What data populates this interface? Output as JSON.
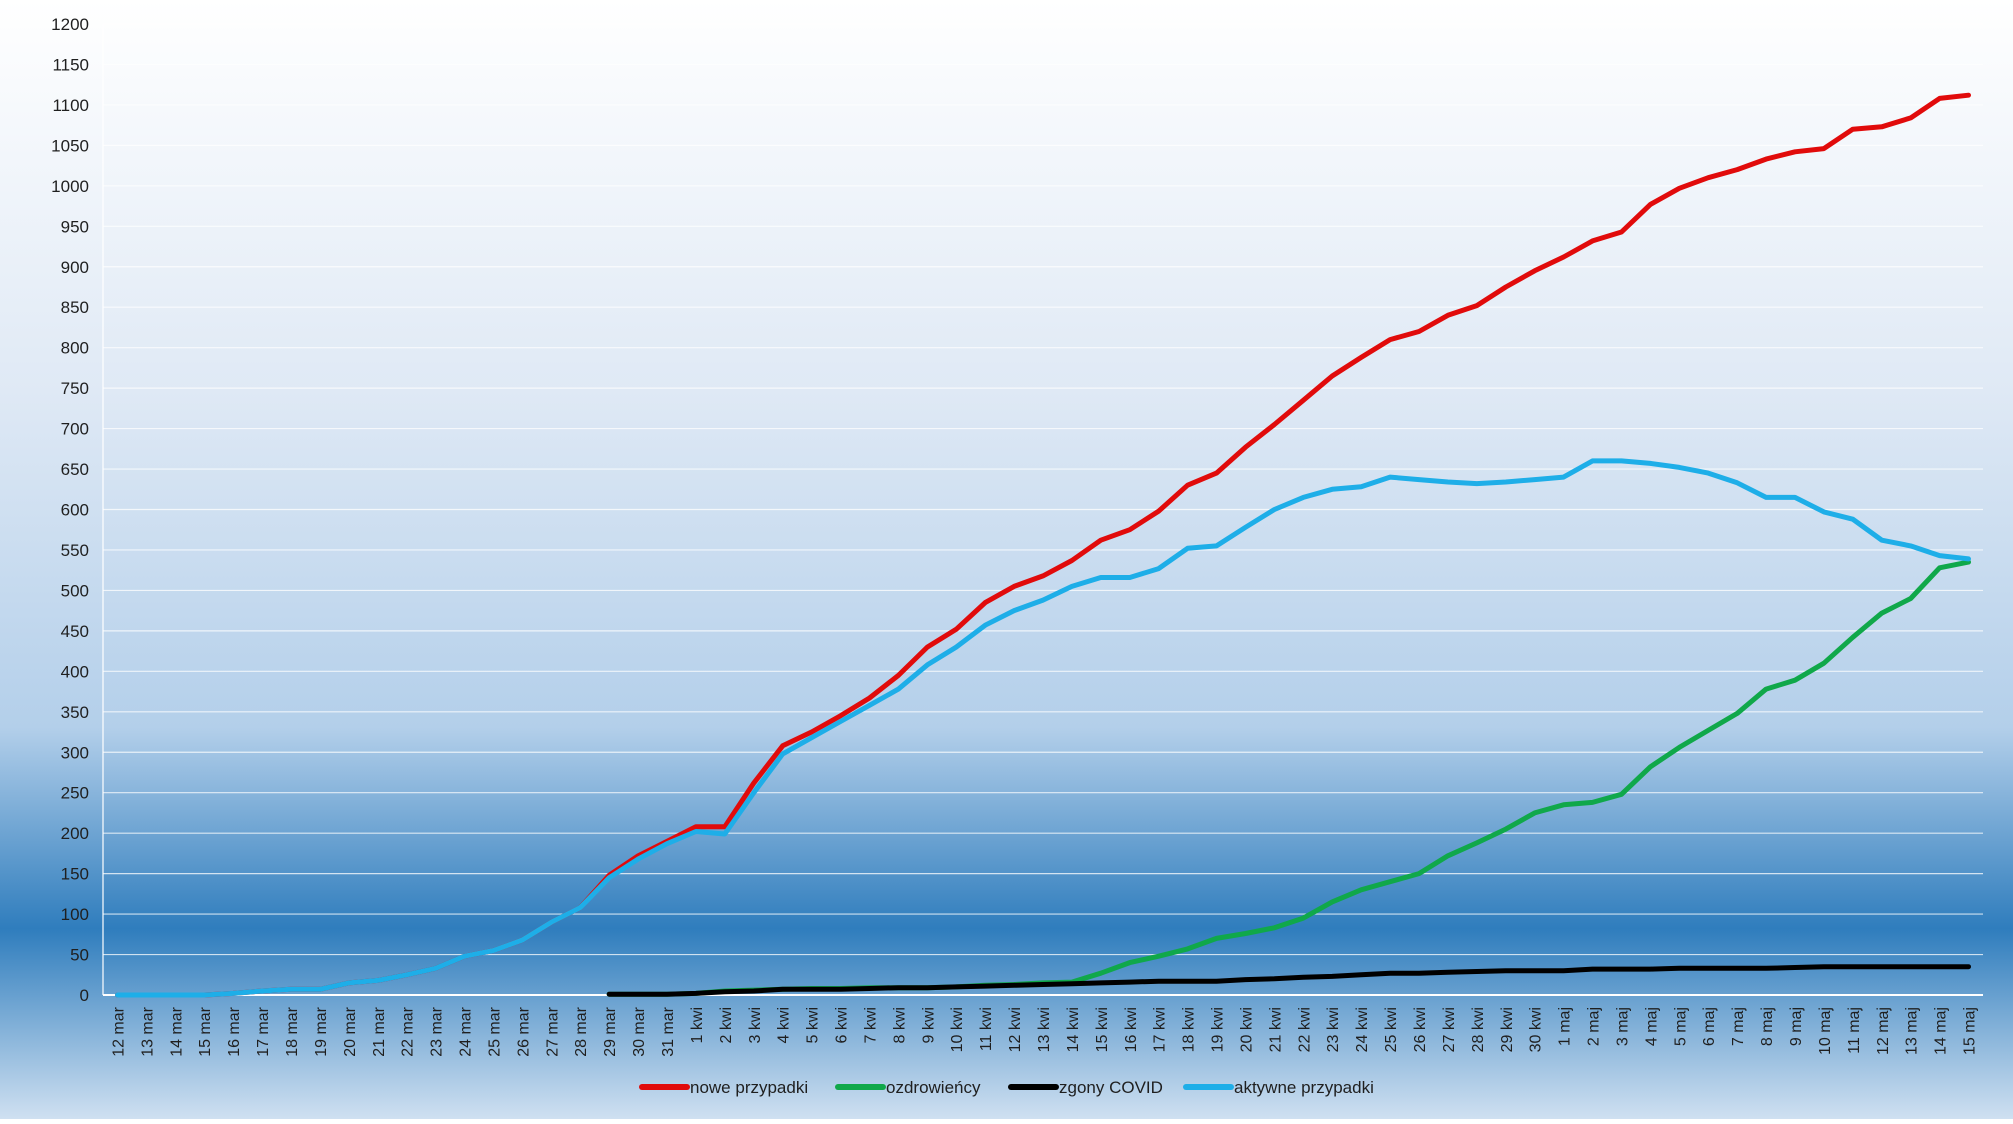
{
  "colors": {
    "nowe": "#e10b0b",
    "ozdrowiency": "#10a84a",
    "zgony": "#000000",
    "aktywne": "#1eaee8",
    "grid": "#d9e4f0",
    "bg_top": "#ffffff",
    "bg_mid": "#bcd4ec",
    "bg_bottom": "#2f7dbd"
  },
  "chart_data": {
    "type": "line",
    "title": "",
    "xlabel": "",
    "ylabel": "",
    "ylim": [
      0,
      1200
    ],
    "ytick_step": 50,
    "grid": true,
    "legend_position": "bottom-center",
    "categories": [
      "12 mar",
      "13 mar",
      "14 mar",
      "15 mar",
      "16 mar",
      "17 mar",
      "18 mar",
      "19 mar",
      "20 mar",
      "21 mar",
      "22 mar",
      "23 mar",
      "24 mar",
      "25 mar",
      "26 mar",
      "27 mar",
      "28 mar",
      "29 mar",
      "30 mar",
      "31 mar",
      "1 kwi",
      "2 kwi",
      "3 kwi",
      "4 kwi",
      "5 kwi",
      "6 kwi",
      "7 kwi",
      "8 kwi",
      "9 kwi",
      "10 kwi",
      "11 kwi",
      "12 kwi",
      "13 kwi",
      "14 kwi",
      "15 kwi",
      "16 kwi",
      "17 kwi",
      "18 kwi",
      "19 kwi",
      "20 kwi",
      "21 kwi",
      "22 kwi",
      "23 kwi",
      "24 kwi",
      "25 kwi",
      "26 kwi",
      "27 kwi",
      "28 kwi",
      "29 kwi",
      "30 kwi",
      "1 maj",
      "2 maj",
      "3 maj",
      "4 maj",
      "5 maj",
      "6 maj",
      "7 maj",
      "8 maj",
      "9 maj",
      "10 maj",
      "11 maj",
      "12 maj",
      "13 maj",
      "14 maj",
      "15 maj"
    ],
    "series": [
      {
        "name": "nowe przypadki",
        "values": [
          0,
          0,
          0,
          0,
          2,
          5,
          7,
          7,
          15,
          18,
          25,
          33,
          48,
          55,
          68,
          90,
          108,
          148,
          172,
          190,
          208,
          208,
          262,
          308,
          325,
          345,
          367,
          395,
          430,
          452,
          485,
          505,
          518,
          537,
          562,
          575,
          598,
          630,
          645,
          677,
          705,
          735,
          765,
          788,
          810,
          820,
          840,
          852,
          875,
          895,
          912,
          932,
          943,
          977,
          997,
          1010,
          1020,
          1033,
          1042,
          1046,
          1070,
          1073,
          1084,
          1108,
          1112
        ]
      },
      {
        "name": "ozdrowieńcy",
        "values": [
          null,
          null,
          null,
          null,
          null,
          null,
          null,
          null,
          null,
          null,
          null,
          null,
          null,
          null,
          null,
          null,
          null,
          1,
          1,
          1,
          2,
          5,
          6,
          7,
          8,
          8,
          9,
          9,
          9,
          10,
          12,
          13,
          15,
          16,
          27,
          40,
          48,
          57,
          70,
          76,
          83,
          95,
          115,
          130,
          140,
          150,
          172,
          188,
          205,
          225,
          235,
          238,
          248,
          282,
          306,
          327,
          348,
          378,
          389,
          410,
          442,
          472,
          490,
          528,
          535
        ]
      },
      {
        "name": "zgony COVID",
        "values": [
          null,
          null,
          null,
          null,
          null,
          null,
          null,
          null,
          null,
          null,
          null,
          null,
          null,
          null,
          null,
          null,
          null,
          1,
          1,
          1,
          2,
          4,
          5,
          7,
          7,
          7,
          8,
          9,
          9,
          10,
          11,
          12,
          13,
          14,
          15,
          16,
          17,
          17,
          17,
          19,
          20,
          22,
          23,
          25,
          27,
          27,
          28,
          29,
          30,
          30,
          30,
          32,
          32,
          32,
          33,
          33,
          33,
          33,
          34,
          35,
          35,
          35,
          35,
          35,
          35
        ]
      },
      {
        "name": "aktywne przypadki",
        "values": [
          0,
          0,
          0,
          0,
          2,
          5,
          7,
          7,
          15,
          18,
          25,
          33,
          48,
          55,
          68,
          90,
          108,
          145,
          168,
          187,
          202,
          199,
          250,
          298,
          318,
          338,
          358,
          378,
          408,
          430,
          457,
          475,
          488,
          505,
          516,
          516,
          527,
          552,
          555,
          578,
          600,
          615,
          625,
          628,
          640,
          637,
          634,
          632,
          634,
          637,
          640,
          660,
          660,
          657,
          652,
          645,
          633,
          615,
          615,
          597,
          588,
          562,
          555,
          543,
          539
        ]
      }
    ]
  }
}
